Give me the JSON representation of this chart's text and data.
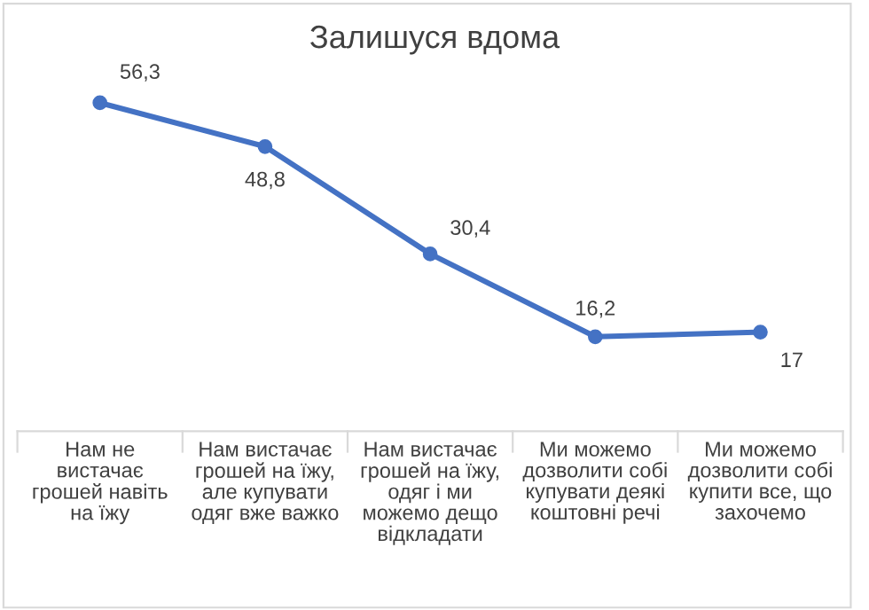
{
  "chart_data": {
    "type": "line",
    "title": "Залишуся вдома",
    "categories": [
      "Нам не\nвистачає\nгрошей навіть\nна їжу",
      "Нам вистачає\nгрошей на їжу,\nале купувати\nодяг вже важко",
      "Нам вистачає\nгрошей на їжу,\nодяг і ми\nможемо дещо\nвідкладати",
      "Ми можемо\nдозволити собі\nкупувати деякі\nкоштовні речі",
      "Ми можемо\nдозволити собі\nкупити все, що\nзахочемо"
    ],
    "series": [
      {
        "color": "#4472c4",
        "values": [
          56.3,
          48.8,
          30.4,
          16.2,
          17
        ],
        "value_labels": [
          "56,3",
          "48,8",
          "30,4",
          "16,2",
          "17"
        ]
      }
    ],
    "marker": "circle",
    "line_style": "solid",
    "grid": false,
    "legend": false
  }
}
